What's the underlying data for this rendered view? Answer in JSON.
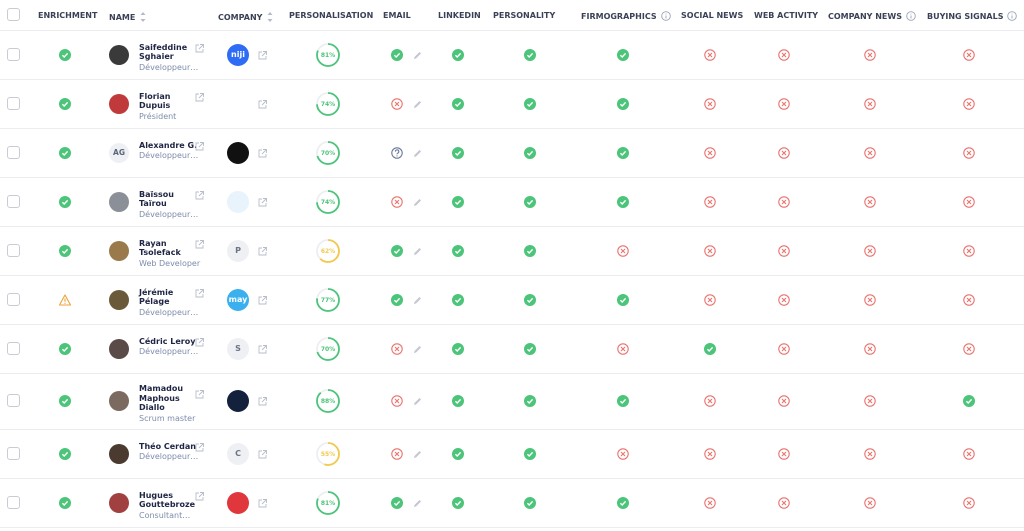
{
  "header": {
    "columns": [
      "ENRICHMENT",
      "NAME",
      "COMPANY",
      "PERSONALISATION",
      "EMAIL",
      "LINKEDIN",
      "PERSONALITY",
      "FIRMOGRAPHICS",
      "SOCIAL NEWS",
      "WEB ACTIVITY",
      "COMPANY NEWS",
      "BUYING SIGNALS"
    ]
  },
  "rows": [
    {
      "enrichment": "check",
      "name": "Saifeddine Sghaier",
      "job": "Développeur…",
      "avatar_color": "#3a3a3a",
      "company": {
        "text": "niji",
        "color": "#2f6cf5"
      },
      "personalisation": {
        "value": 81,
        "label": "81%"
      },
      "email": "check",
      "linkedin": "check",
      "personality": "check",
      "firmographics": "check",
      "social_news": "cross",
      "web_activity": "cross",
      "company_news": "cross",
      "buying_signals": "cross"
    },
    {
      "enrichment": "check",
      "name": "Florian Dupuis",
      "job": "Président",
      "avatar_color": "#c0393b",
      "company": {
        "color": "#ffffff"
      },
      "personalisation": {
        "value": 74,
        "label": "74%"
      },
      "email": "cross",
      "linkedin": "check",
      "personality": "check",
      "firmographics": "check",
      "social_news": "cross",
      "web_activity": "cross",
      "company_news": "cross",
      "buying_signals": "cross"
    },
    {
      "enrichment": "check",
      "name": "Alexandre G.",
      "job": "Développeur…",
      "avatar_initials": "AG",
      "company": {
        "color": "#111111"
      },
      "personalisation": {
        "value": 70,
        "label": "70%"
      },
      "email": "question",
      "linkedin": "check",
      "personality": "check",
      "firmographics": "check",
      "social_news": "cross",
      "web_activity": "cross",
      "company_news": "cross",
      "buying_signals": "cross"
    },
    {
      "enrichment": "check",
      "name": "Baïssou Taïrou",
      "job": "Développeur…",
      "avatar_color": "#8a8f98",
      "company": {
        "color": "#e9f3fb"
      },
      "personalisation": {
        "value": 74,
        "label": "74%"
      },
      "email": "cross",
      "linkedin": "check",
      "personality": "check",
      "firmographics": "check",
      "social_news": "cross",
      "web_activity": "cross",
      "company_news": "cross",
      "buying_signals": "cross"
    },
    {
      "enrichment": "check",
      "name": "Rayan Tsolefack",
      "job": "Web Developer",
      "avatar_color": "#9a7a4a",
      "company": {
        "text": "P",
        "color": "#eef0f4"
      },
      "personalisation": {
        "value": 62,
        "label": "62%"
      },
      "email": "check",
      "linkedin": "check",
      "personality": "check",
      "firmographics": "cross",
      "social_news": "cross",
      "web_activity": "cross",
      "company_news": "cross",
      "buying_signals": "cross"
    },
    {
      "enrichment": "warning",
      "name": "Jérémie Pélage",
      "job": "Développeur…",
      "avatar_color": "#6b5a3a",
      "company": {
        "text": "may",
        "color": "#3ab0ef"
      },
      "personalisation": {
        "value": 77,
        "label": "77%"
      },
      "email": "check",
      "linkedin": "check",
      "personality": "check",
      "firmographics": "check",
      "social_news": "cross",
      "web_activity": "cross",
      "company_news": "cross",
      "buying_signals": "cross"
    },
    {
      "enrichment": "check",
      "name": "Cédric Leroy",
      "job": "Développeur…",
      "avatar_color": "#5a4a48",
      "company": {
        "text": "S",
        "color": "#eef0f4"
      },
      "personalisation": {
        "value": 70,
        "label": "70%"
      },
      "email": "cross",
      "linkedin": "check",
      "personality": "check",
      "firmographics": "cross",
      "social_news": "check",
      "web_activity": "cross",
      "company_news": "cross",
      "buying_signals": "cross"
    },
    {
      "enrichment": "check",
      "name": "Mamadou Maphous Diallo",
      "job": "Scrum master",
      "avatar_color": "#7a6a60",
      "company": {
        "color": "#14213d"
      },
      "personalisation": {
        "value": 88,
        "label": "88%"
      },
      "email": "cross",
      "linkedin": "check",
      "personality": "check",
      "firmographics": "check",
      "social_news": "cross",
      "web_activity": "cross",
      "company_news": "cross",
      "buying_signals": "check"
    },
    {
      "enrichment": "check",
      "name": "Théo Cerdan",
      "job": "Développeur…",
      "avatar_color": "#4a3a30",
      "company": {
        "text": "C",
        "color": "#eef0f4"
      },
      "personalisation": {
        "value": 55,
        "label": "55%"
      },
      "email": "cross",
      "linkedin": "check",
      "personality": "check",
      "firmographics": "cross",
      "social_news": "cross",
      "web_activity": "cross",
      "company_news": "cross",
      "buying_signals": "cross"
    },
    {
      "enrichment": "check",
      "name": "Hugues Gouttebroze",
      "job": "Consultant…",
      "avatar_color": "#a04040",
      "company": {
        "color": "#e0373c"
      },
      "personalisation": {
        "value": 81,
        "label": "81%"
      },
      "email": "check",
      "linkedin": "check",
      "personality": "check",
      "firmographics": "check",
      "social_news": "cross",
      "web_activity": "cross",
      "company_news": "cross",
      "buying_signals": "cross"
    }
  ]
}
